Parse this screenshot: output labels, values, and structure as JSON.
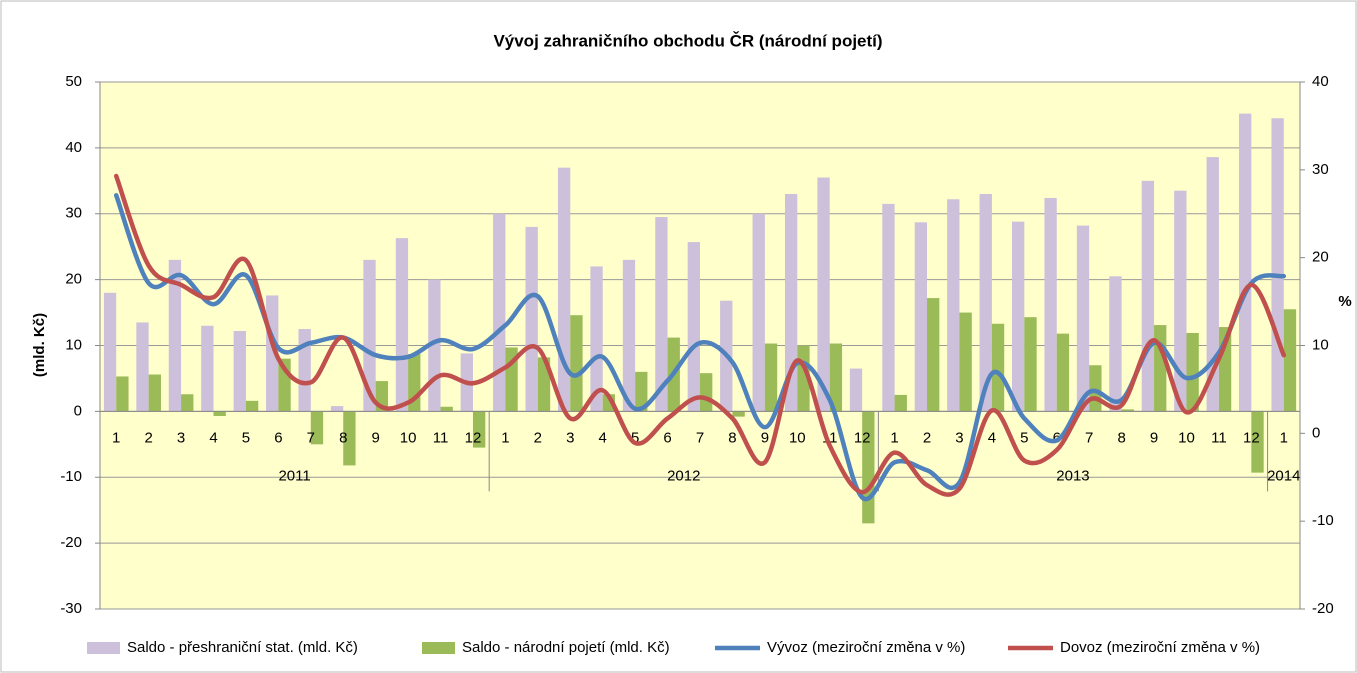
{
  "chart_data": {
    "type": "bar_line",
    "title": "Vývoj zahraničního obchodu ČR (národní pojetí)",
    "y_label": "(mld. Kč)",
    "y2_label": "%",
    "categories": [
      "1",
      "2",
      "3",
      "4",
      "5",
      "6",
      "7",
      "8",
      "9",
      "10",
      "11",
      "12",
      "1",
      "2",
      "3",
      "4",
      "5",
      "6",
      "7",
      "8",
      "9",
      "10",
      "11",
      "12",
      "1",
      "2",
      "3",
      "4",
      "5",
      "6",
      "7",
      "8",
      "9",
      "10",
      "11",
      "12",
      "1"
    ],
    "category_groups": [
      {
        "label": "2011",
        "count": 12
      },
      {
        "label": "2012",
        "count": 12
      },
      {
        "label": "2013",
        "count": 12
      },
      {
        "label": "2014",
        "count": 1
      }
    ],
    "ylim": [
      -30,
      50
    ],
    "yticks": [
      -30,
      -20,
      -10,
      0,
      10,
      20,
      30,
      40,
      50
    ],
    "y2lim": [
      -20,
      40
    ],
    "y2ticks": [
      -20,
      -10,
      0,
      10,
      20,
      30,
      40
    ],
    "grid": true,
    "legend": "bottom",
    "series": [
      {
        "name": "Saldo - přeshraniční stat. (mld. Kč)",
        "kind": "bar",
        "color": "#ccc0da",
        "values": [
          18,
          13.5,
          23,
          13,
          12.2,
          17.6,
          12.5,
          0.8,
          23,
          26.3,
          20,
          8.8,
          30,
          28,
          37,
          22,
          23,
          29.5,
          25.7,
          16.8,
          30,
          33,
          35.5,
          6.5,
          31.5,
          28.7,
          32.2,
          33,
          28.8,
          32.4,
          28.2,
          20.5,
          35,
          33.5,
          38.6,
          45.2,
          44.5
        ]
      },
      {
        "name": "Saldo - národní pojetí (mld. Kč)",
        "kind": "bar",
        "color": "#9bbb59",
        "values": [
          5.3,
          5.6,
          2.6,
          -0.7,
          1.6,
          8,
          -5,
          -8.2,
          4.6,
          8.7,
          0.7,
          -5.5,
          9.7,
          8.2,
          14.6,
          2.6,
          6,
          11.2,
          5.8,
          -0.8,
          10.3,
          10,
          10.3,
          -17,
          2.5,
          17.2,
          15,
          13.3,
          14.3,
          11.8,
          7,
          0.3,
          13.1,
          11.9,
          12.8,
          -9.3,
          15.5
        ]
      },
      {
        "name": "Vývoz (meziroční změna v %)",
        "kind": "line",
        "axis": "y2",
        "color": "#4f81bd",
        "values": [
          27.1,
          17.1,
          18,
          14.7,
          18,
          9.7,
          10.3,
          10.9,
          8.9,
          8.7,
          10.6,
          9.6,
          12.3,
          15.6,
          6.8,
          8.7,
          2.8,
          6,
          10.3,
          8.1,
          0.7,
          8,
          3.8,
          -7.3,
          -3.3,
          -4.2,
          -5.6,
          6.8,
          1.7,
          -0.8,
          4.7,
          3.8,
          10.3,
          6.3,
          9.2,
          17.1,
          17.9
        ]
      },
      {
        "name": "Dovoz (meziroční změna v %)",
        "kind": "line",
        "axis": "y2",
        "color": "#c0504d",
        "values": [
          29.3,
          19.1,
          16.9,
          15.5,
          19.7,
          8.5,
          5.8,
          10.9,
          3.5,
          3.5,
          6.6,
          5.7,
          7.5,
          9.7,
          1.7,
          4.9,
          -1.1,
          1.7,
          4.1,
          1.7,
          -3.3,
          8.3,
          -1.4,
          -6.7,
          -2.2,
          -5.9,
          -6.3,
          2.6,
          -3.1,
          -1.9,
          3.8,
          3.2,
          10.6,
          2.4,
          8.5,
          16.9,
          8.9
        ]
      }
    ]
  }
}
